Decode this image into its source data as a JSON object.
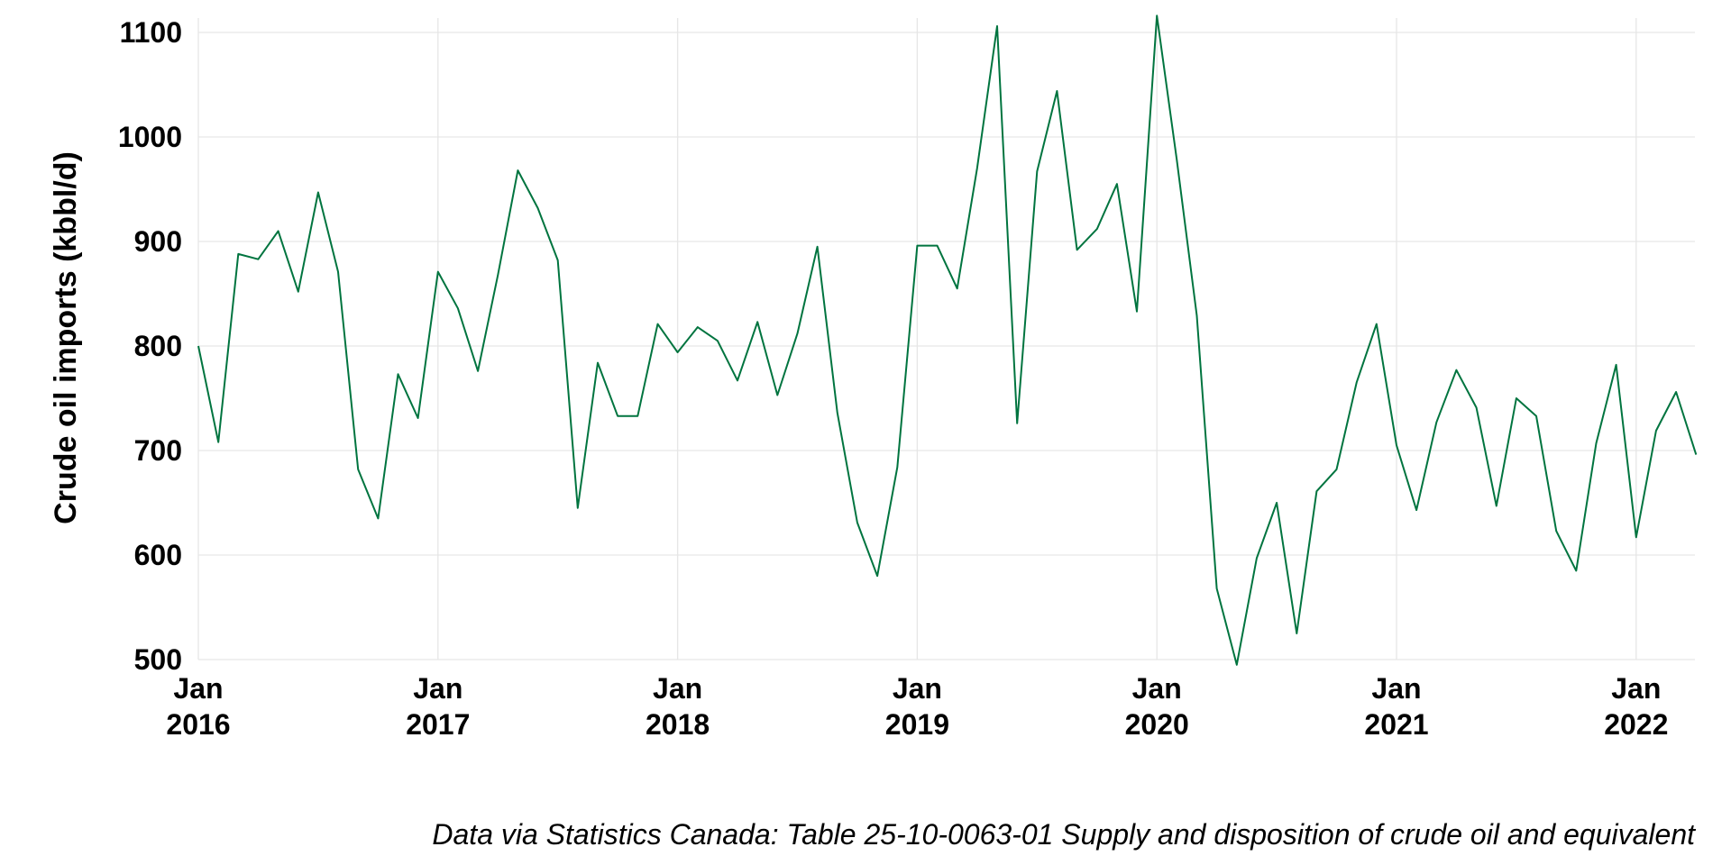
{
  "chart_data": {
    "type": "line",
    "title": "",
    "xlabel": "",
    "ylabel": "Crude oil imports (kbbl/d)",
    "caption": "Data via Statistics Canada: Table 25-10-0063-01  Supply and disposition of crude oil and equivalent",
    "line_color": "#00743f",
    "grid": true,
    "ylim": [
      500,
      1100
    ],
    "x_start": "2016-01",
    "y_ticks": [
      "500",
      "600",
      "700",
      "800",
      "900",
      "1000",
      "1100"
    ],
    "x_ticks": [
      {
        "month_index": 0,
        "month": "Jan",
        "year": "2016"
      },
      {
        "month_index": 12,
        "month": "Jan",
        "year": "2017"
      },
      {
        "month_index": 24,
        "month": "Jan",
        "year": "2018"
      },
      {
        "month_index": 36,
        "month": "Jan",
        "year": "2019"
      },
      {
        "month_index": 48,
        "month": "Jan",
        "year": "2020"
      },
      {
        "month_index": 60,
        "month": "Jan",
        "year": "2021"
      },
      {
        "month_index": 72,
        "month": "Jan",
        "year": "2022"
      }
    ],
    "values": [
      800,
      708,
      888,
      883,
      910,
      852,
      947,
      871,
      682,
      635,
      773,
      731,
      871,
      836,
      776,
      868,
      968,
      932,
      882,
      645,
      784,
      733,
      733,
      821,
      794,
      818,
      805,
      767,
      823,
      753,
      812,
      895,
      736,
      631,
      580,
      684,
      896,
      896,
      855,
      970,
      1106,
      726,
      967,
      1044,
      892,
      912,
      955,
      833,
      1116,
      978,
      829,
      568,
      495,
      597,
      650,
      525,
      661,
      682,
      765,
      821,
      705,
      643,
      727,
      777,
      741,
      647,
      750,
      733,
      623,
      585,
      707,
      782,
      617,
      719,
      756,
      696
    ]
  }
}
